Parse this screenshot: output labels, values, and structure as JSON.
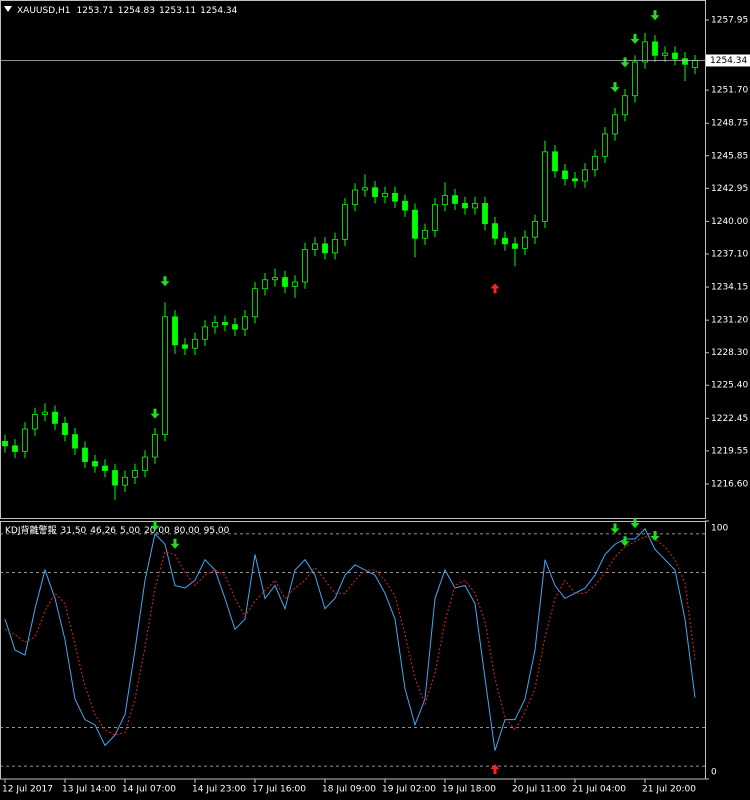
{
  "chart_data": [
    {
      "type": "candlestick",
      "title": "XAUUSD,H1",
      "open": [
        1220.4,
        1220.0,
        1219.5,
        1221.5,
        1222.8,
        1223.0,
        1222.0,
        1221.0,
        1219.8,
        1218.6,
        1218.2,
        1217.8,
        1216.5,
        1217.2,
        1217.8,
        1219.0,
        1221.0,
        1231.5,
        1229.0,
        1228.7,
        1229.5,
        1230.6,
        1231.0,
        1230.8,
        1230.4,
        1231.5,
        1234.0,
        1234.8,
        1235.0,
        1234.2,
        1234.6,
        1237.5,
        1238.0,
        1237.2,
        1238.4,
        1241.5,
        1242.8,
        1243.0,
        1242.2,
        1242.5,
        1241.8,
        1241.0,
        1238.5,
        1239.2,
        1241.5,
        1242.3,
        1241.6,
        1241.2,
        1241.6,
        1239.8,
        1238.5,
        1238.0,
        1237.6,
        1238.6,
        1240.0,
        1246.2,
        1244.5,
        1243.8,
        1243.6,
        1244.6,
        1245.8,
        1247.8,
        1249.5,
        1251.2,
        1254.2,
        1256.0,
        1254.8,
        1255.0,
        1254.5,
        1253.71
      ],
      "high": [
        1221.0,
        1220.6,
        1222.1,
        1223.4,
        1223.8,
        1223.6,
        1222.6,
        1221.6,
        1220.4,
        1219.2,
        1218.8,
        1218.4,
        1217.8,
        1218.4,
        1219.6,
        1221.6,
        1232.8,
        1232.1,
        1229.6,
        1230.1,
        1231.2,
        1231.6,
        1231.6,
        1231.4,
        1232.1,
        1234.6,
        1235.4,
        1235.8,
        1235.6,
        1235.2,
        1238.1,
        1238.6,
        1238.6,
        1239.0,
        1242.1,
        1243.4,
        1244.2,
        1243.6,
        1243.1,
        1243.1,
        1242.4,
        1241.6,
        1239.8,
        1242.1,
        1243.5,
        1242.9,
        1242.2,
        1242.2,
        1242.2,
        1240.4,
        1239.1,
        1238.6,
        1239.2,
        1240.6,
        1247.2,
        1246.8,
        1245.1,
        1244.4,
        1245.2,
        1246.4,
        1248.4,
        1250.1,
        1251.8,
        1254.8,
        1256.8,
        1256.6,
        1255.6,
        1255.6,
        1255.1,
        1254.83
      ],
      "low": [
        1219.4,
        1218.9,
        1218.9,
        1220.9,
        1222.2,
        1221.4,
        1220.4,
        1219.2,
        1218.0,
        1217.6,
        1217.2,
        1215.2,
        1215.9,
        1216.6,
        1217.2,
        1218.4,
        1220.4,
        1228.2,
        1228.1,
        1228.1,
        1228.9,
        1230.0,
        1230.2,
        1229.8,
        1229.8,
        1230.9,
        1233.4,
        1234.2,
        1233.6,
        1233.2,
        1234.0,
        1236.9,
        1236.6,
        1236.6,
        1237.8,
        1240.9,
        1242.2,
        1241.6,
        1241.6,
        1241.2,
        1240.4,
        1236.8,
        1237.9,
        1238.6,
        1240.9,
        1241.0,
        1240.6,
        1240.6,
        1239.2,
        1237.9,
        1237.4,
        1236.0,
        1237.0,
        1238.0,
        1239.4,
        1243.9,
        1243.2,
        1243.0,
        1243.0,
        1244.0,
        1245.2,
        1247.2,
        1248.9,
        1250.6,
        1253.6,
        1254.2,
        1254.2,
        1253.9,
        1252.5,
        1253.11
      ],
      "close": [
        1220.0,
        1219.5,
        1221.5,
        1222.8,
        1223.0,
        1222.0,
        1221.0,
        1219.8,
        1218.6,
        1218.2,
        1217.8,
        1216.5,
        1217.2,
        1217.8,
        1219.0,
        1221.0,
        1231.5,
        1229.0,
        1228.7,
        1229.5,
        1230.6,
        1231.0,
        1230.8,
        1230.4,
        1231.5,
        1234.0,
        1234.8,
        1235.0,
        1234.2,
        1234.6,
        1237.5,
        1238.0,
        1237.2,
        1238.4,
        1241.5,
        1242.8,
        1243.0,
        1242.2,
        1242.5,
        1241.8,
        1241.0,
        1238.5,
        1239.2,
        1241.5,
        1242.3,
        1241.6,
        1241.2,
        1241.6,
        1239.8,
        1238.5,
        1238.0,
        1237.6,
        1238.6,
        1240.0,
        1246.2,
        1244.5,
        1243.8,
        1243.6,
        1244.6,
        1245.8,
        1247.8,
        1249.5,
        1251.2,
        1254.2,
        1256.0,
        1254.8,
        1255.0,
        1254.5,
        1254.0,
        1254.34
      ],
      "color": "#00ff00",
      "ylim": [
        1213.57,
        1259.73
      ],
      "yticks": [
        1257.95,
        {
          "value": 1251.7,
          "label": "1251.70"
        },
        1248.75,
        1245.85,
        1242.95,
        {
          "value": 1240,
          "label": "1240.00"
        },
        {
          "value": 1237.1,
          "label": "1237.10"
        },
        1234.15,
        {
          "value": 1231.2,
          "label": "1231.20"
        },
        {
          "value": 1228.3,
          "label": "1228.30"
        },
        {
          "value": 1225.4,
          "label": "1225.40"
        },
        1222.45,
        1219.55,
        {
          "value": 1216.6,
          "label": "1216.60"
        }
      ],
      "xticks": [
        {
          "value": 0,
          "label": "12 Jul 2017"
        },
        {
          "value": 6,
          "label": "13 Jul 14:00"
        },
        {
          "value": 12,
          "label": "14 Jul 07:00"
        },
        {
          "value": 19,
          "label": "14 Jul 23:00"
        },
        {
          "value": 25,
          "label": "17 Jul 16:00"
        },
        {
          "value": 32,
          "label": "18 Jul 09:00"
        },
        {
          "value": 38,
          "label": "19 Jul 02:00"
        },
        {
          "value": 44,
          "label": "19 Jul 18:00"
        },
        {
          "value": 51,
          "label": "20 Jul 11:00"
        },
        {
          "value": 57,
          "label": "21 Jul 04:00"
        },
        {
          "value": 64,
          "label": "21 Jul 20:00"
        }
      ],
      "signals": [
        {
          "bar": 16,
          "price": 1234.4,
          "kind": "down",
          "color": "#22dd22"
        },
        {
          "bar": 15,
          "price": 1222.6,
          "kind": "down",
          "color": "#22dd22"
        },
        {
          "bar": 49,
          "price": 1234.3,
          "kind": "up",
          "color": "#ff2020"
        },
        {
          "bar": 61,
          "price": 1251.7,
          "kind": "down",
          "color": "#22dd22"
        },
        {
          "bar": 62,
          "price": 1253.9,
          "kind": "down",
          "color": "#22dd22"
        },
        {
          "bar": 63,
          "price": 1256.0,
          "kind": "down",
          "color": "#22dd22"
        },
        {
          "bar": 65,
          "price": 1258.1,
          "kind": "down",
          "color": "#22dd22"
        }
      ]
    },
    {
      "type": "line",
      "title": "KDJ背離警報",
      "readout": [
        {
          "value": 31.5,
          "label": "31.50"
        },
        {
          "value": 46.26,
          "label": "46.26"
        }
      ],
      "levels": [
        {
          "value": 5,
          "label": "5.00"
        },
        {
          "value": 20,
          "label": "20.00"
        },
        {
          "value": 80,
          "label": "80.00"
        },
        {
          "value": 95,
          "label": "95.00"
        }
      ],
      "series": [
        {
          "color": "#3fa9f5",
          "dashed": false,
          "values": [
            62,
            50,
            48,
            66,
            81,
            70,
            54,
            31,
            23,
            21,
            13,
            17,
            25,
            50,
            77,
            95,
            91,
            75,
            74,
            77,
            85,
            81,
            70,
            58,
            62,
            87,
            70,
            75,
            66,
            81,
            85,
            79,
            66,
            70,
            79,
            83,
            81,
            79,
            72,
            62,
            35,
            21,
            31,
            70,
            81,
            74,
            75,
            68,
            39,
            11,
            23,
            23,
            31,
            50,
            85,
            75,
            70,
            72,
            74,
            79,
            87,
            91,
            93,
            93,
            97,
            89,
            85,
            81,
            62,
            31.5
          ]
        },
        {
          "color": "#e02020",
          "dashed": true,
          "values": [
            58,
            56,
            53,
            55,
            65,
            72,
            68,
            52,
            36,
            25,
            19,
            17,
            18,
            31,
            51,
            74,
            88,
            87,
            80,
            75,
            79,
            81,
            79,
            70,
            63,
            69,
            73,
            77,
            70,
            74,
            77,
            82,
            77,
            72,
            72,
            77,
            81,
            81,
            77,
            71,
            56,
            39,
            29,
            41,
            61,
            75,
            77,
            72,
            61,
            39,
            24,
            19,
            26,
            35,
            55,
            70,
            77,
            72,
            72,
            75,
            80,
            86,
            90,
            92,
            94,
            93,
            90,
            85,
            76,
            46.26
          ]
        }
      ],
      "ylim": [
        0,
        100
      ],
      "yticks": [
        100,
        0
      ],
      "signals": [
        {
          "bar": 15,
          "price": 97,
          "kind": "down",
          "color": "#22dd22"
        },
        {
          "bar": 17,
          "price": 90,
          "kind": "down",
          "color": "#22dd22"
        },
        {
          "bar": 49,
          "price": 5,
          "kind": "up",
          "color": "#ff2020"
        },
        {
          "bar": 61,
          "price": 96,
          "kind": "down",
          "color": "#22dd22"
        },
        {
          "bar": 62,
          "price": 91,
          "kind": "down",
          "color": "#22dd22"
        },
        {
          "bar": 63,
          "price": 98,
          "kind": "down",
          "color": "#22dd22"
        },
        {
          "bar": 65,
          "price": 93,
          "kind": "down",
          "color": "#22dd22"
        }
      ]
    }
  ]
}
